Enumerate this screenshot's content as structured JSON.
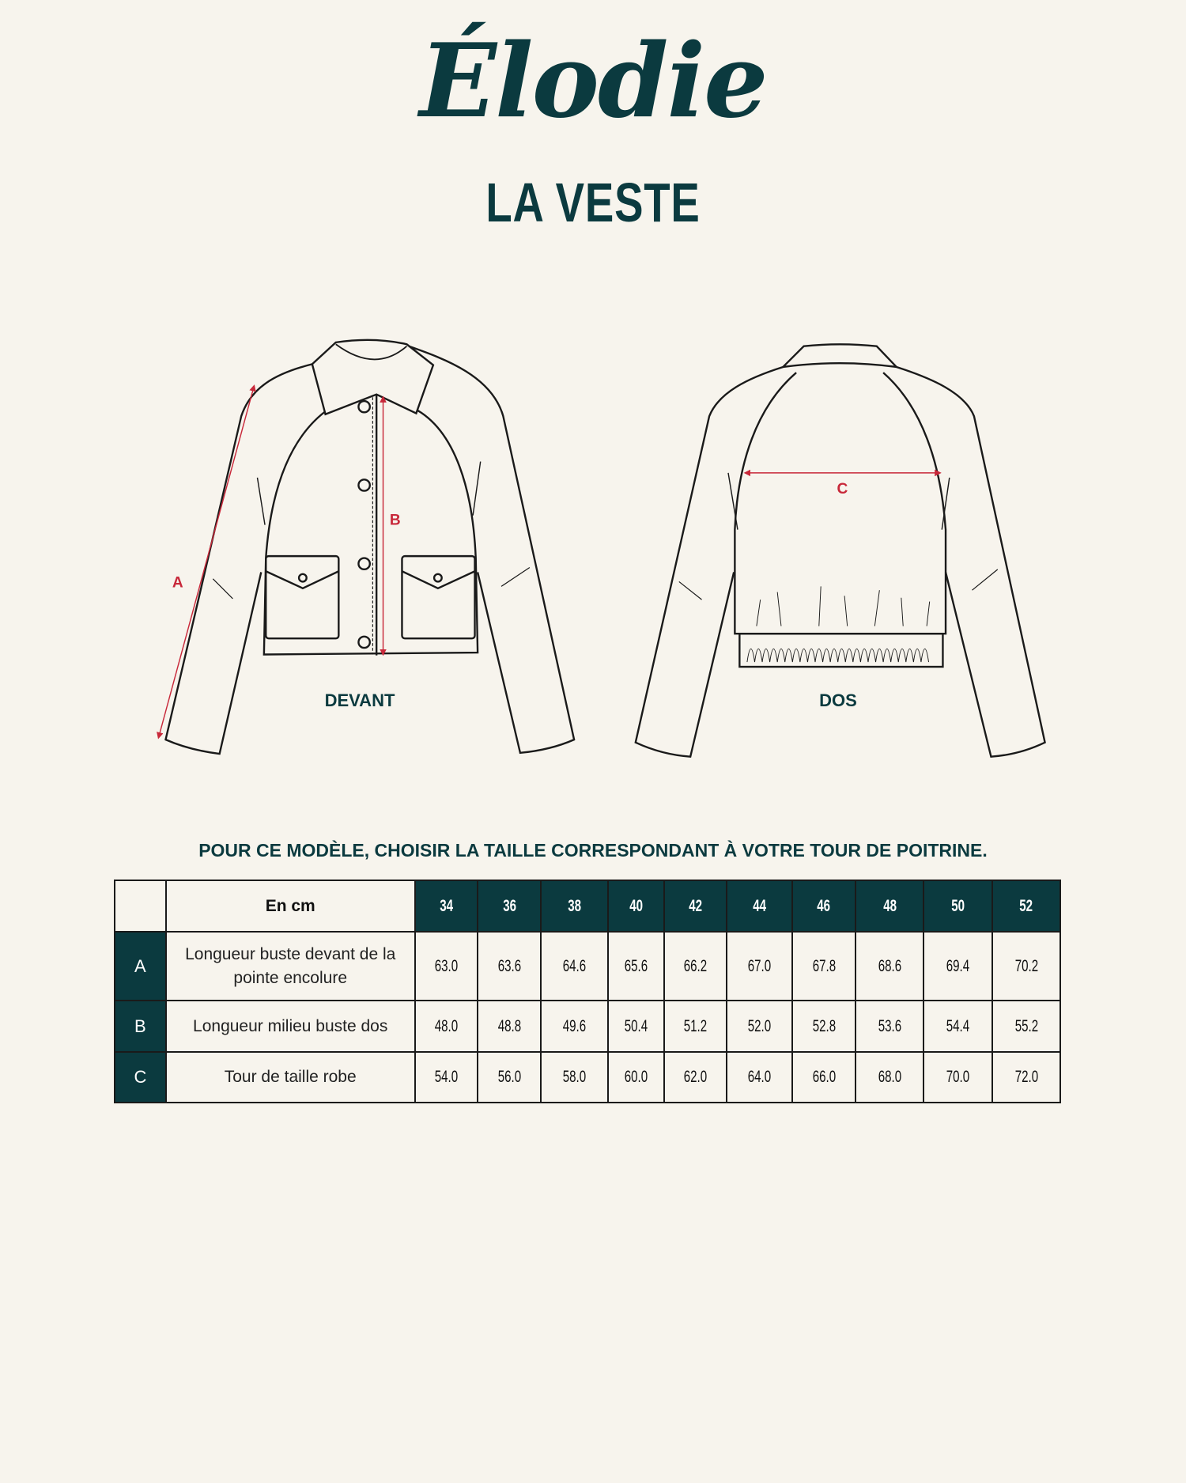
{
  "header": {
    "title": "Élodie",
    "subtitle": "LA VESTE"
  },
  "drawings": {
    "front_label": "DEVANT",
    "back_label": "DOS",
    "measure_labels": [
      "A",
      "B",
      "C"
    ],
    "measure_color": "#c8283a"
  },
  "instruction": "POUR CE MODÈLE, CHOISIR LA TAILLE CORRESPONDANT À VOTRE TOUR DE POITRINE.",
  "table": {
    "unit_label": "En cm",
    "sizes": [
      "34",
      "36",
      "38",
      "40",
      "42",
      "44",
      "46",
      "48",
      "50",
      "52"
    ],
    "rows": [
      {
        "key": "A",
        "label": "Longueur buste devant de la pointe encolure",
        "values": [
          "63.0",
          "63.6",
          "64.6",
          "65.6",
          "66.2",
          "67.0",
          "67.8",
          "68.6",
          "69.4",
          "70.2"
        ]
      },
      {
        "key": "B",
        "label": "Longueur milieu buste dos",
        "values": [
          "48.0",
          "48.8",
          "49.6",
          "50.4",
          "51.2",
          "52.0",
          "52.8",
          "53.6",
          "54.4",
          "55.2"
        ]
      },
      {
        "key": "C",
        "label": "Tour de taille robe",
        "values": [
          "54.0",
          "56.0",
          "58.0",
          "60.0",
          "62.0",
          "64.0",
          "66.0",
          "68.0",
          "70.0",
          "72.0"
        ]
      }
    ]
  },
  "colors": {
    "brand": "#0b3a3f",
    "background": "#f7f4ed",
    "accent": "#c8283a"
  }
}
